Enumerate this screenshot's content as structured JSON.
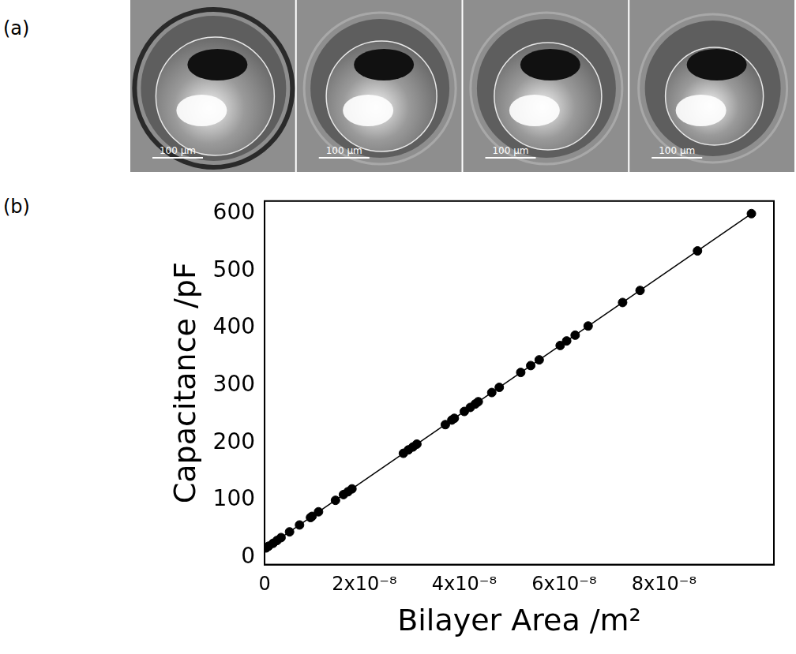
{
  "panel_labels": [
    "(a)",
    "(b)"
  ],
  "micrographs": [
    {
      "scale_bar": "100 μm"
    },
    {
      "scale_bar": "100 μm"
    },
    {
      "scale_bar": "100 μm"
    },
    {
      "scale_bar": "100 μm"
    }
  ],
  "chart_data": {
    "type": "scatter",
    "x_label": "Bilayer Area /m²",
    "y_label": "Capacitance /pF",
    "xlim": [
      0,
      1.02e-07
    ],
    "ylim": [
      -12,
      622
    ],
    "xticks": [
      0,
      {
        "value": 2e-08,
        "label": "2x10⁻⁸"
      },
      {
        "value": 4e-08,
        "label": "4x10⁻⁸"
      },
      {
        "value": 6e-08,
        "label": "6x10⁻⁸"
      },
      {
        "value": 8e-08,
        "label": "8x10⁻⁸"
      }
    ],
    "yticks": [
      0,
      100,
      200,
      300,
      400,
      500,
      600
    ],
    "grid": false,
    "series": [
      {
        "marker": "circle",
        "color": "#000000",
        "x": [
          3e-10,
          8e-10,
          1.7e-09,
          2.5e-09,
          3.3e-09,
          5e-09,
          7e-09,
          9.2e-09,
          9.5e-09,
          1.08e-08,
          1.42e-08,
          1.58e-08,
          1.67e-08,
          1.75e-08,
          2.78e-08,
          2.88e-08,
          2.97e-08,
          3.05e-08,
          3.62e-08,
          3.75e-08,
          3.8e-08,
          4e-08,
          4.12e-08,
          4.22e-08,
          4.28e-08,
          4.55e-08,
          4.7e-08,
          5.13e-08,
          5.33e-08,
          5.5e-08,
          5.92e-08,
          6.05e-08,
          6.22e-08,
          6.48e-08,
          7.17e-08,
          7.52e-08,
          8.67e-08,
          9.75e-08
        ],
        "values": [
          17,
          20,
          25,
          30,
          35,
          45,
          57,
          70,
          72,
          80,
          100,
          110,
          115,
          120,
          182,
          188,
          193,
          198,
          232,
          240,
          243,
          255,
          262,
          268,
          272,
          288,
          297,
          323,
          335,
          345,
          370,
          378,
          388,
          404,
          445,
          466,
          535,
          600
        ]
      },
      {
        "type": "line",
        "line_style": "solid",
        "color": "#000000",
        "x": [
          0,
          9.75e-08
        ],
        "values": [
          15,
          600
        ]
      }
    ]
  }
}
